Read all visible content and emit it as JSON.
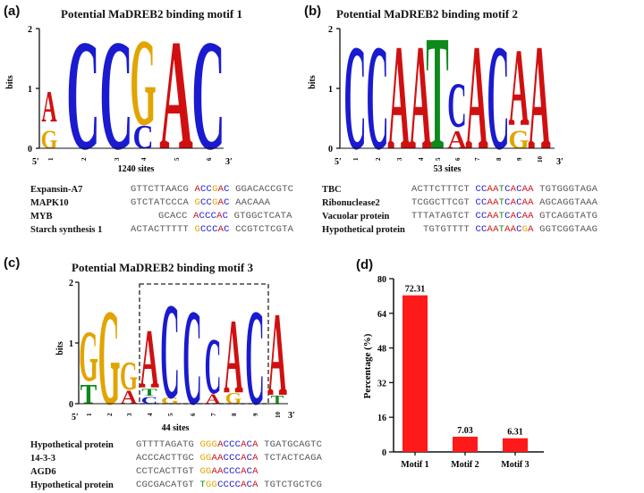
{
  "panels": [
    {
      "label": "(a)",
      "title": "Potential MaDREB2 binding motif 1",
      "sites": "1240 sites",
      "ylabel": "bits",
      "axis_start": "5′",
      "axis_end": "3′",
      "ytick_top": "2",
      "ytick_mid": "1",
      "ytick_bottom": "0",
      "positions": [
        "1",
        "2",
        "3",
        "4",
        "5",
        "6"
      ],
      "rows": [
        {
          "name": "Expansin-A7",
          "pre": "GTTCTTAACG ",
          "motif": "ACCGAC",
          "post": " GGACACCGTC"
        },
        {
          "name": "MAPK10",
          "pre": "GTCTATCCCA ",
          "motif": "GCCGAC",
          "post": " AACAAA"
        },
        {
          "name": "MYB",
          "pre": "GCACC ",
          "motif": "ACCCAC",
          "post": " GTGGCTCATA"
        },
        {
          "name": "Starch synthesis 1",
          "pre": "ACTACTTTTT ",
          "motif": "GCCCAC",
          "post": " CCGTCTCGTA"
        }
      ]
    },
    {
      "label": "(b)",
      "title": "Potential MaDREB2 binding motif 2",
      "sites": "53 sites",
      "ylabel": "bits",
      "axis_start": "5′",
      "axis_end": "3′",
      "ytick_top": "2",
      "ytick_mid": "1",
      "ytick_bottom": "0",
      "positions": [
        "1",
        "2",
        "3",
        "4",
        "5",
        "6",
        "7",
        "8",
        "9",
        "10"
      ],
      "rows": [
        {
          "name": "TBC",
          "pre": "ACTTCTTTCT ",
          "motif": "CCAATCACAA",
          "post": " TGTGGGTAGA"
        },
        {
          "name": "Ribonuclease2",
          "pre": "TCGGCTTCGT ",
          "motif": "CCAATCACAA",
          "post": " AGCAGGTAAA"
        },
        {
          "name": "Vacuolar protein",
          "pre": "TTTATAGTCT ",
          "motif": "CCAATCACAA",
          "post": " GTCAGGTATG"
        },
        {
          "name": "Hypothetical protein",
          "pre": "TGTGTTTT ",
          "motif": "CCAATAACGA",
          "post": " GGTCGGTAAG"
        }
      ]
    },
    {
      "label": "(c)",
      "title": "Potential MaDREB2 binding motif 3",
      "sites": "44 sites",
      "ylabel": "bits",
      "axis_start": "5′",
      "axis_end": "3′",
      "ytick_top": "2",
      "ytick_mid": "1",
      "ytick_bottom": "0",
      "positions": [
        "1",
        "2",
        "3",
        "4",
        "5",
        "6",
        "7",
        "8",
        "9",
        "10"
      ],
      "rows": [
        {
          "name": "Hypothetical protein",
          "pre": "GTTTTAGATG ",
          "motif": "GGGACCCACA",
          "post": " TGATGCAGTC"
        },
        {
          "name": "14-3-3",
          "pre": "ACCCACTTGC ",
          "motif": "GGAACCCACA",
          "post": " TCTACTCAGA"
        },
        {
          "name": "AGD6",
          "pre": "CCTCACTTGT ",
          "motif": "GGAACCCACA",
          "post": ""
        },
        {
          "name": "Hypothetical protein",
          "pre": "CGCGACATGT ",
          "motif": "TGGCCCCACA",
          "post": " TGTCTGCTCG"
        }
      ]
    }
  ],
  "chart_panel": {
    "label": "(d)"
  },
  "chart_data": {
    "type": "bar",
    "categories": [
      "Motif 1",
      "Motif 2",
      "Motif 3"
    ],
    "values": [
      72.31,
      7.03,
      6.31
    ],
    "value_labels": [
      "72.31",
      "7.03",
      "6.31"
    ],
    "ylabel": "Percentage (%)",
    "xlabel": "",
    "ylim": [
      0,
      80
    ],
    "yticks": [
      0,
      16,
      32,
      48,
      64,
      80
    ],
    "bar_color": "#ff1a1a"
  },
  "colors": {
    "A": "#d01010",
    "C": "#1a1ad0",
    "G": "#e2a400",
    "T": "#0d8a1a"
  }
}
